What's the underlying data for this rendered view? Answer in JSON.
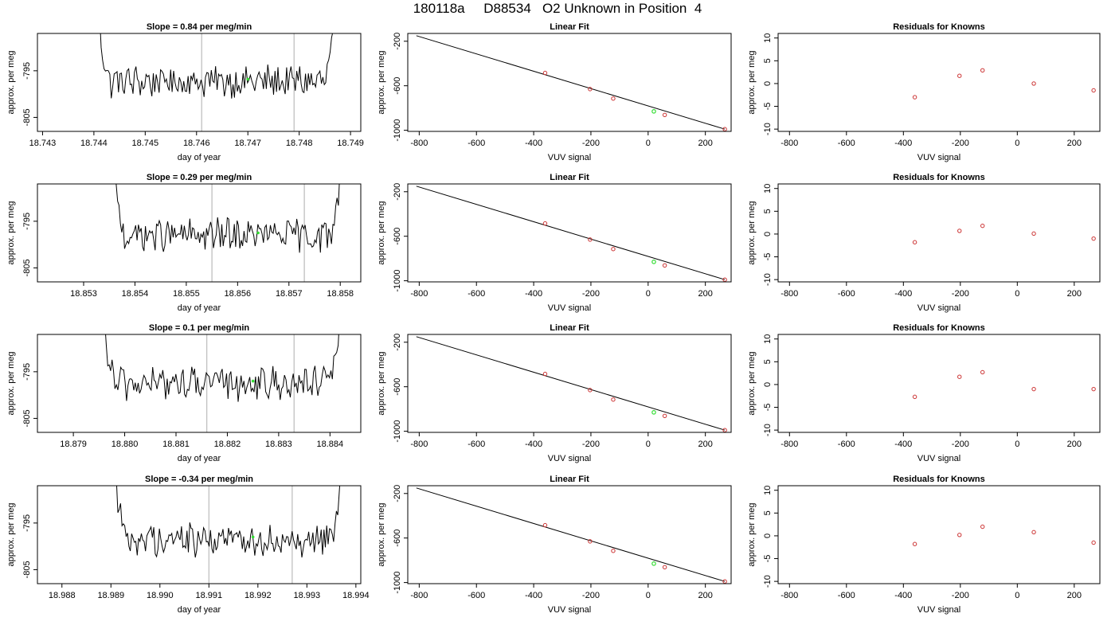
{
  "title": "180118a     D88534   O2 Unknown in Position  4",
  "colors": {
    "known": "#cc3333",
    "unknown": "#33dd33",
    "line": "#000000",
    "vline": "#bbbbbb"
  },
  "chart_data": [
    {
      "type": "line",
      "title": "Slope =  0.84  per meg/min",
      "xlabel": "day of year",
      "ylabel": "approx. per meg",
      "xlim": [
        18.7429,
        18.7492
      ],
      "ylim": [
        -808,
        -787
      ],
      "xticks": [
        "18.743",
        "18.744",
        "18.745",
        "18.746",
        "18.747",
        "18.748",
        "18.749"
      ],
      "xtick_values": [
        18.743,
        18.744,
        18.745,
        18.746,
        18.747,
        18.748,
        18.749
      ],
      "yticks": [
        "-805",
        "-795"
      ],
      "ytick_values": [
        -805,
        -795
      ],
      "trace_x_range": [
        18.744,
        18.7488
      ],
      "vlines": [
        18.7461,
        18.7479
      ],
      "unknown_point": [
        18.747,
        -796.8
      ]
    },
    {
      "type": "scatter",
      "title": "Linear Fit",
      "xlabel": "VUV signal",
      "ylabel": "approx. per meg",
      "xlim": [
        -840,
        290
      ],
      "ylim": [
        -1010,
        -130
      ],
      "xticks": [
        "-800",
        "-600",
        "-400",
        "-200",
        "0",
        "200"
      ],
      "xtick_values": [
        -800,
        -600,
        -400,
        -200,
        0,
        200
      ],
      "yticks": [
        "-1000",
        "-600",
        "-200"
      ],
      "ytick_values": [
        -1000,
        -600,
        -200
      ],
      "fit_line": [
        [
          -810,
          -150
        ],
        [
          268,
          -990
        ]
      ],
      "knowns": [
        [
          -360,
          -485
        ],
        [
          -203,
          -630
        ],
        [
          -122,
          -715
        ],
        [
          58,
          -862
        ],
        [
          268,
          -990
        ]
      ],
      "unknown": [
        20,
        -830
      ]
    },
    {
      "type": "scatter",
      "title": "Residuals for Knowns",
      "xlabel": "VUV signal",
      "ylabel": "approx. per meg",
      "xlim": [
        -840,
        290
      ],
      "ylim": [
        -10.5,
        11
      ],
      "xticks": [
        "-800",
        "-600",
        "-400",
        "-200",
        "0",
        "200"
      ],
      "xtick_values": [
        -800,
        -600,
        -400,
        -200,
        0,
        200
      ],
      "yticks": [
        "-10",
        "-5",
        "0",
        "5",
        "10"
      ],
      "ytick_values": [
        -10,
        -5,
        0,
        5,
        10
      ],
      "residuals": [
        [
          -360,
          -3.0
        ],
        [
          -203,
          1.7
        ],
        [
          -122,
          2.9
        ],
        [
          58,
          0.0
        ],
        [
          268,
          -1.5
        ]
      ]
    },
    {
      "type": "line",
      "title": "Slope =  0.29  per meg/min",
      "xlabel": "day of year",
      "ylabel": "approx. per meg",
      "xlim": [
        18.8521,
        18.8584
      ],
      "ylim": [
        -808,
        -787
      ],
      "xticks": [
        "18.853",
        "18.854",
        "18.855",
        "18.856",
        "18.857",
        "18.858"
      ],
      "xtick_values": [
        18.853,
        18.854,
        18.855,
        18.856,
        18.857,
        18.858
      ],
      "yticks": [
        "-805",
        "-795"
      ],
      "ytick_values": [
        -805,
        -795
      ],
      "trace_x_range": [
        18.8535,
        18.8581
      ],
      "vlines": [
        18.8555,
        18.8573
      ],
      "unknown_point": [
        18.8564,
        -797.5
      ]
    },
    {
      "type": "scatter",
      "title": "Linear Fit",
      "xlabel": "VUV signal",
      "ylabel": "approx. per meg",
      "xlim": [
        -840,
        290
      ],
      "ylim": [
        -1010,
        -130
      ],
      "xticks": [
        "-800",
        "-600",
        "-400",
        "-200",
        "0",
        "200"
      ],
      "xtick_values": [
        -800,
        -600,
        -400,
        -200,
        0,
        200
      ],
      "yticks": [
        "-1000",
        "-600",
        "-200"
      ],
      "ytick_values": [
        -1000,
        -600,
        -200
      ],
      "fit_line": [
        [
          -810,
          -150
        ],
        [
          268,
          -990
        ]
      ],
      "knowns": [
        [
          -360,
          -485
        ],
        [
          -203,
          -630
        ],
        [
          -122,
          -715
        ],
        [
          58,
          -862
        ],
        [
          268,
          -990
        ]
      ],
      "unknown": [
        20,
        -830
      ]
    },
    {
      "type": "scatter",
      "title": "Residuals for Knowns",
      "xlabel": "VUV signal",
      "ylabel": "approx. per meg",
      "xlim": [
        -840,
        290
      ],
      "ylim": [
        -10.5,
        11
      ],
      "xticks": [
        "-800",
        "-600",
        "-400",
        "-200",
        "0",
        "200"
      ],
      "xtick_values": [
        -800,
        -600,
        -400,
        -200,
        0,
        200
      ],
      "yticks": [
        "-10",
        "-5",
        "0",
        "5",
        "10"
      ],
      "ytick_values": [
        -10,
        -5,
        0,
        5,
        10
      ],
      "residuals": [
        [
          -360,
          -1.8
        ],
        [
          -203,
          0.7
        ],
        [
          -122,
          1.8
        ],
        [
          58,
          0.1
        ],
        [
          268,
          -1.0
        ]
      ]
    },
    {
      "type": "line",
      "title": "Slope =  0.1  per meg/min",
      "xlabel": "day of year",
      "ylabel": "approx. per meg",
      "xlim": [
        18.8783,
        18.8846
      ],
      "ylim": [
        -808,
        -787
      ],
      "xticks": [
        "18.879",
        "18.880",
        "18.881",
        "18.882",
        "18.883",
        "18.884"
      ],
      "xtick_values": [
        18.879,
        18.88,
        18.881,
        18.882,
        18.883,
        18.884
      ],
      "yticks": [
        "-805",
        "-795"
      ],
      "ytick_values": [
        -805,
        -795
      ],
      "trace_x_range": [
        18.8795,
        18.8843
      ],
      "vlines": [
        18.8816,
        18.8833
      ],
      "unknown_point": [
        18.8825,
        -797.0
      ]
    },
    {
      "type": "scatter",
      "title": "Linear Fit",
      "xlabel": "VUV signal",
      "ylabel": "approx. per meg",
      "xlim": [
        -840,
        290
      ],
      "ylim": [
        -1010,
        -130
      ],
      "xticks": [
        "-800",
        "-600",
        "-400",
        "-200",
        "0",
        "200"
      ],
      "xtick_values": [
        -800,
        -600,
        -400,
        -200,
        0,
        200
      ],
      "yticks": [
        "-1000",
        "-600",
        "-200"
      ],
      "ytick_values": [
        -1000,
        -600,
        -200
      ],
      "fit_line": [
        [
          -810,
          -150
        ],
        [
          268,
          -990
        ]
      ],
      "knowns": [
        [
          -360,
          -485
        ],
        [
          -203,
          -630
        ],
        [
          -122,
          -715
        ],
        [
          58,
          -862
        ],
        [
          268,
          -990
        ]
      ],
      "unknown": [
        20,
        -830
      ]
    },
    {
      "type": "scatter",
      "title": "Residuals for Knowns",
      "xlabel": "VUV signal",
      "ylabel": "approx. per meg",
      "xlim": [
        -840,
        290
      ],
      "ylim": [
        -10.5,
        11
      ],
      "xticks": [
        "-800",
        "-600",
        "-400",
        "-200",
        "0",
        "200"
      ],
      "xtick_values": [
        -800,
        -600,
        -400,
        -200,
        0,
        200
      ],
      "yticks": [
        "-10",
        "-5",
        "0",
        "5",
        "10"
      ],
      "ytick_values": [
        -10,
        -5,
        0,
        5,
        10
      ],
      "residuals": [
        [
          -360,
          -2.7
        ],
        [
          -203,
          1.7
        ],
        [
          -122,
          2.7
        ],
        [
          58,
          -1.0
        ],
        [
          268,
          -1.0
        ]
      ]
    },
    {
      "type": "line",
      "title": "Slope =  -0.34  per meg/min",
      "xlabel": "day of year",
      "ylabel": "approx. per meg",
      "xlim": [
        18.9875,
        18.9941
      ],
      "ylim": [
        -808,
        -787
      ],
      "xticks": [
        "18.988",
        "18.989",
        "18.990",
        "18.991",
        "18.992",
        "18.993",
        "18.994"
      ],
      "xtick_values": [
        18.988,
        18.989,
        18.99,
        18.991,
        18.992,
        18.993,
        18.994
      ],
      "yticks": [
        "-805",
        "-795"
      ],
      "ytick_values": [
        -805,
        -795
      ],
      "trace_x_range": [
        18.989,
        18.9938
      ],
      "vlines": [
        18.991,
        18.9927
      ],
      "unknown_point": [
        18.9919,
        -798.0
      ]
    },
    {
      "type": "scatter",
      "title": "Linear Fit",
      "xlabel": "VUV signal",
      "ylabel": "approx. per meg",
      "xlim": [
        -840,
        290
      ],
      "ylim": [
        -1010,
        -130
      ],
      "xticks": [
        "-800",
        "-600",
        "-400",
        "-200",
        "0",
        "200"
      ],
      "xtick_values": [
        -800,
        -600,
        -400,
        -200,
        0,
        200
      ],
      "yticks": [
        "-1000",
        "-600",
        "-200"
      ],
      "ytick_values": [
        -1000,
        -600,
        -200
      ],
      "fit_line": [
        [
          -810,
          -150
        ],
        [
          268,
          -990
        ]
      ],
      "knowns": [
        [
          -360,
          -485
        ],
        [
          -203,
          -630
        ],
        [
          -122,
          -715
        ],
        [
          58,
          -862
        ],
        [
          268,
          -990
        ]
      ],
      "unknown": [
        20,
        -830
      ]
    },
    {
      "type": "scatter",
      "title": "Residuals for Knowns",
      "xlabel": "VUV signal",
      "ylabel": "approx. per meg",
      "xlim": [
        -840,
        290
      ],
      "ylim": [
        -10.5,
        11
      ],
      "xticks": [
        "-800",
        "-600",
        "-400",
        "-200",
        "0",
        "200"
      ],
      "xtick_values": [
        -800,
        -600,
        -400,
        -200,
        0,
        200
      ],
      "yticks": [
        "-10",
        "-5",
        "0",
        "5",
        "10"
      ],
      "ytick_values": [
        -10,
        -5,
        0,
        5,
        10
      ],
      "residuals": [
        [
          -360,
          -1.8
        ],
        [
          -203,
          0.2
        ],
        [
          -122,
          2.0
        ],
        [
          58,
          0.8
        ],
        [
          268,
          -1.5
        ]
      ]
    }
  ]
}
